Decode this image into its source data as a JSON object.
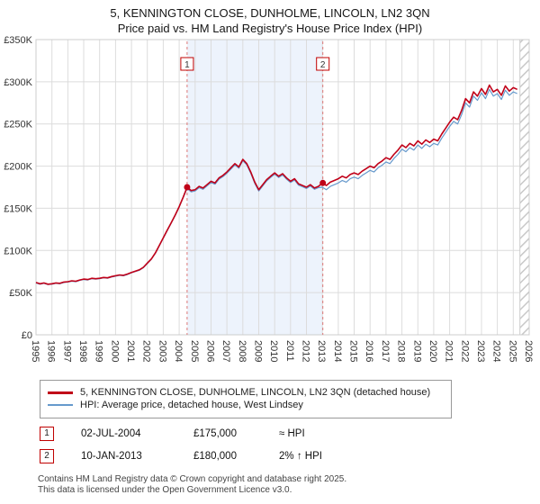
{
  "header": {
    "title": "5, KENNINGTON CLOSE, DUNHOLME, LINCOLN, LN2 3QN",
    "subtitle": "Price paid vs. HM Land Registry's House Price Index (HPI)"
  },
  "chart_data": {
    "type": "line",
    "title": "5, KENNINGTON CLOSE, DUNHOLME, LINCOLN, LN2 3QN",
    "subtitle": "Price paid vs. HM Land Registry's House Price Index (HPI)",
    "grid": true,
    "legend_position": "bottom",
    "x_range": [
      1995,
      2026
    ],
    "ylim": [
      0,
      350000
    ],
    "x_ticks": [
      1995,
      1996,
      1997,
      1998,
      1999,
      2000,
      2001,
      2002,
      2003,
      2004,
      2005,
      2006,
      2007,
      2008,
      2009,
      2010,
      2011,
      2012,
      2013,
      2014,
      2015,
      2016,
      2017,
      2018,
      2019,
      2020,
      2021,
      2022,
      2023,
      2024,
      2025,
      2026
    ],
    "y_ticks": [
      {
        "v": 0,
        "label": "£0"
      },
      {
        "v": 50000,
        "label": "£50K"
      },
      {
        "v": 100000,
        "label": "£100K"
      },
      {
        "v": 150000,
        "label": "£150K"
      },
      {
        "v": 200000,
        "label": "£200K"
      },
      {
        "v": 250000,
        "label": "£250K"
      },
      {
        "v": 300000,
        "label": "£300K"
      },
      {
        "v": 350000,
        "label": "£350K"
      }
    ],
    "x_start": 1995,
    "x_step": 0.25,
    "band_color": "#edf3fc",
    "event_line_color": "#dd7777",
    "shaded_region": {
      "from": 2004.5,
      "to": 2013.03
    },
    "hatch_region": {
      "from": 2025.42,
      "to": 2026
    },
    "series": [
      {
        "name": "5, KENNINGTON CLOSE, DUNHOLME, LINCOLN, LN2 3QN (detached house)",
        "color": "#c00018",
        "values": [
          62000,
          60500,
          61500,
          60000,
          60500,
          61500,
          61000,
          62500,
          63000,
          64000,
          63500,
          65000,
          66000,
          65500,
          67000,
          66500,
          67000,
          68000,
          67500,
          69000,
          70000,
          71000,
          70500,
          72000,
          74000,
          75500,
          77000,
          80000,
          85000,
          90000,
          97000,
          106000,
          115000,
          124000,
          133000,
          142000,
          152000,
          163000,
          175000,
          171000,
          172000,
          176000,
          174000,
          178000,
          182000,
          180000,
          186000,
          189000,
          193000,
          198000,
          203000,
          199000,
          208000,
          203000,
          193000,
          181000,
          172000,
          178000,
          184000,
          188000,
          192000,
          188000,
          191000,
          186000,
          182000,
          185000,
          179000,
          177000,
          175000,
          178000,
          174000,
          176000,
          180000,
          177000,
          181000,
          183000,
          185000,
          188000,
          186000,
          190000,
          192000,
          190000,
          194000,
          197000,
          200000,
          198000,
          203000,
          206000,
          210000,
          208000,
          214000,
          219000,
          225000,
          222000,
          227000,
          224000,
          230000,
          226000,
          231000,
          228000,
          232000,
          230000,
          238000,
          245000,
          252000,
          258000,
          255000,
          266000,
          280000,
          275000,
          288000,
          283000,
          292000,
          285000,
          296000,
          288000,
          291000,
          284000,
          295000,
          289000,
          293000,
          291000
        ]
      },
      {
        "name": "HPI: Average price, detached house, West Lindsey",
        "color": "#6699cc",
        "values": [
          61500,
          60000,
          61000,
          59500,
          60000,
          61000,
          60500,
          62000,
          62500,
          63500,
          63000,
          64500,
          65500,
          65000,
          66500,
          66000,
          66500,
          67500,
          67000,
          68500,
          69500,
          70500,
          70000,
          71500,
          73500,
          75000,
          76500,
          79500,
          84500,
          89500,
          96500,
          105500,
          114500,
          123500,
          132500,
          141500,
          151500,
          162500,
          173500,
          169500,
          170500,
          174500,
          172500,
          176500,
          180500,
          178500,
          184500,
          187500,
          191500,
          196500,
          201500,
          197500,
          206500,
          201500,
          191500,
          179500,
          170500,
          176500,
          182500,
          186500,
          190500,
          186500,
          189500,
          184500,
          180500,
          183500,
          177500,
          175500,
          173500,
          176500,
          172500,
          174500,
          175000,
          172000,
          176000,
          178000,
          180000,
          183000,
          181000,
          185000,
          187000,
          185000,
          189000,
          192000,
          195000,
          193000,
          198000,
          201000,
          205000,
          203000,
          209000,
          214000,
          220000,
          217000,
          222000,
          219000,
          225000,
          221000,
          226000,
          223000,
          227000,
          225000,
          233000,
          240000,
          247000,
          253000,
          250000,
          261000,
          275000,
          270000,
          283000,
          278000,
          287000,
          280000,
          291000,
          283000,
          286000,
          279000,
          290000,
          284000,
          288000,
          286000
        ]
      }
    ],
    "sale_markers": [
      {
        "label": "1",
        "x": 2004.5,
        "price": 175000
      },
      {
        "label": "2",
        "x": 2013.03,
        "price": 180000
      }
    ]
  },
  "legend": {
    "items": [
      {
        "label": "5, KENNINGTON CLOSE, DUNHOLME, LINCOLN, LN2 3QN (detached house)",
        "color": "#c00018"
      },
      {
        "label": "HPI: Average price, detached house, West Lindsey",
        "color": "#6699cc"
      }
    ]
  },
  "transactions": [
    {
      "num": "1",
      "date": "02-JUL-2004",
      "price": "£175,000",
      "hpi_relation": "≈ HPI"
    },
    {
      "num": "2",
      "date": "10-JAN-2013",
      "price": "£180,000",
      "hpi_relation": "2% ↑ HPI"
    }
  ],
  "footer": {
    "line1": "Contains HM Land Registry data © Crown copyright and database right 2025.",
    "line2": "This data is licensed under the Open Government Licence v3.0."
  }
}
